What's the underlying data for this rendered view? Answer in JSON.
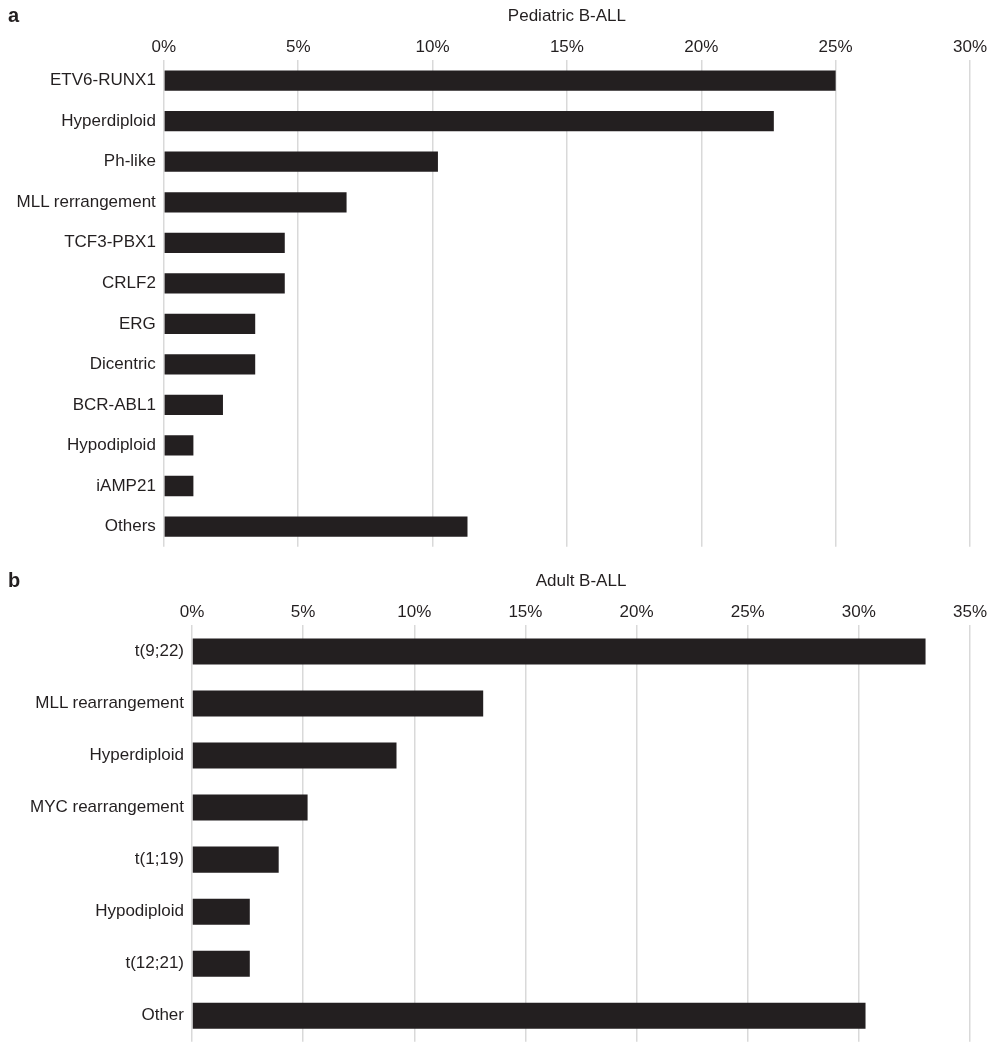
{
  "chart_data": [
    {
      "type": "bar",
      "orientation": "horizontal",
      "title": "Pediatric B-ALL",
      "annotations": [
        "a"
      ],
      "categories": [
        "ETV6-RUNX1",
        "Hyperdiploid",
        "Ph-like",
        "MLL rerrangement",
        "TCF3-PBX1",
        "CRLF2",
        "ERG",
        "Dicentric",
        "BCR-ABL1",
        "Hypodiploid",
        "iAMP21",
        "Others"
      ],
      "values": [
        25,
        22.7,
        10.2,
        6.8,
        4.5,
        4.5,
        3.4,
        3.4,
        2.2,
        1.1,
        1.1,
        11.3
      ],
      "color": "#231f20",
      "xlim": [
        0,
        30
      ],
      "xticks": [
        {
          "value": 0,
          "label": "0%"
        },
        {
          "value": 5,
          "label": "5%"
        },
        {
          "value": 10,
          "label": "10%"
        },
        {
          "value": 15,
          "label": "15%"
        },
        {
          "value": 20,
          "label": "20%"
        },
        {
          "value": 25,
          "label": "25%"
        },
        {
          "value": 30,
          "label": "30%"
        }
      ],
      "grid": "x",
      "legend": false
    },
    {
      "type": "bar",
      "orientation": "horizontal",
      "title": "Adult B-ALL",
      "annotations": [
        "b"
      ],
      "categories": [
        "t(9;22)",
        "MLL rearrangement",
        "Hyperdiploid",
        "MYC rearrangement",
        "t(1;19)",
        "Hypodiploid",
        "t(12;21)",
        "Other"
      ],
      "values": [
        33,
        13.1,
        9.2,
        5.2,
        3.9,
        2.6,
        2.6,
        30.3
      ],
      "color": "#231f20",
      "xlim": [
        0,
        35
      ],
      "xticks": [
        {
          "value": 0,
          "label": "0%"
        },
        {
          "value": 5,
          "label": "5%"
        },
        {
          "value": 10,
          "label": "10%"
        },
        {
          "value": 15,
          "label": "15%"
        },
        {
          "value": 20,
          "label": "20%"
        },
        {
          "value": 25,
          "label": "25%"
        },
        {
          "value": 30,
          "label": "30%"
        },
        {
          "value": 35,
          "label": "35%"
        }
      ],
      "grid": "x",
      "legend": false
    }
  ]
}
